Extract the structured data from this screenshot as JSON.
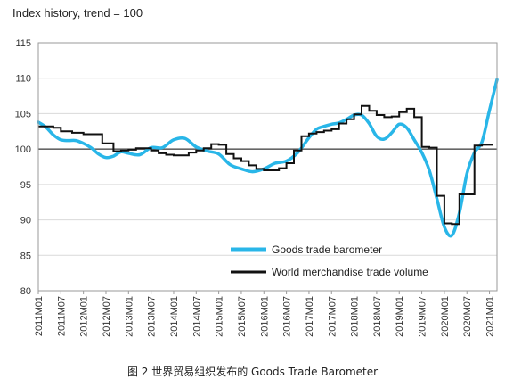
{
  "caption": "图 2 世界贸易组织发布的 Goods Trade Barometer",
  "colors": {
    "barometer": "#29b6e8",
    "volume": "#111111",
    "trend": "#666666",
    "grid": "#d9d9d9"
  },
  "chart_data": {
    "type": "line",
    "title": "Index history, trend = 100",
    "ylim": [
      80,
      115
    ],
    "yticks": [
      80,
      85,
      90,
      95,
      100,
      105,
      110,
      115
    ],
    "reference_line": 100,
    "grid": true,
    "legend_position": "bottom-right",
    "x_range": [
      "2011M01",
      "2021M03"
    ],
    "xticks": [
      "2011M01",
      "2011M07",
      "2012M01",
      "2012M07",
      "2013M01",
      "2013M07",
      "2014M01",
      "2014M07",
      "2015M01",
      "2015M07",
      "2016M01",
      "2016M07",
      "2017M01",
      "2017M07",
      "2018M01",
      "2018M07",
      "2019M01",
      "2019M07",
      "2020M01",
      "2020M07",
      "2021M01"
    ],
    "series": [
      {
        "name": "Goods trade barometer",
        "x": [
          "2011M01",
          "2011M03",
          "2011M05",
          "2011M07",
          "2011M09",
          "2011M11",
          "2012M01",
          "2012M03",
          "2012M05",
          "2012M07",
          "2012M09",
          "2012M11",
          "2013M01",
          "2013M04",
          "2013M07",
          "2013M10",
          "2014M01",
          "2014M04",
          "2014M07",
          "2014M10",
          "2015M01",
          "2015M04",
          "2015M07",
          "2015M10",
          "2016M01",
          "2016M04",
          "2016M07",
          "2016M10",
          "2017M01",
          "2017M03",
          "2017M05",
          "2017M07",
          "2017M09",
          "2017M11",
          "2018M01",
          "2018M03",
          "2018M05",
          "2018M07",
          "2018M09",
          "2018M11",
          "2019M01",
          "2019M03",
          "2019M05",
          "2019M07",
          "2019M09",
          "2019M11",
          "2020M01",
          "2020M03",
          "2020M05",
          "2020M07",
          "2020M09",
          "2020M11",
          "2021M01",
          "2021M03"
        ],
        "y": [
          103.8,
          103.1,
          102,
          101.3,
          101.2,
          101.2,
          100.8,
          100.2,
          99.3,
          98.8,
          99,
          99.6,
          99.4,
          99.2,
          100.2,
          100.2,
          101.3,
          101.5,
          100.3,
          99.7,
          99.3,
          97.8,
          97.2,
          96.8,
          97.2,
          98,
          98.3,
          99.5,
          101.6,
          102.8,
          103.2,
          103.5,
          103.7,
          104.2,
          104.8,
          104.8,
          103.6,
          101.8,
          101.4,
          102.3,
          103.5,
          103,
          101.3,
          99.5,
          97,
          93,
          89,
          87.8,
          91,
          96.5,
          99.5,
          101,
          105.5,
          109.8
        ]
      },
      {
        "name": "World merchandise trade volume",
        "x": [
          "2011M01",
          "2011M05",
          "2011M07",
          "2011M10",
          "2012M01",
          "2012M06",
          "2012M09",
          "2012M11",
          "2013M01",
          "2013M03",
          "2013M05",
          "2013M07",
          "2013M09",
          "2013M11",
          "2014M01",
          "2014M03",
          "2014M05",
          "2014M07",
          "2014M09",
          "2014M11",
          "2015M01",
          "2015M03",
          "2015M05",
          "2015M07",
          "2015M09",
          "2015M11",
          "2016M01",
          "2016M03",
          "2016M05",
          "2016M07",
          "2016M09",
          "2016M11",
          "2017M01",
          "2017M03",
          "2017M05",
          "2017M07",
          "2017M09",
          "2017M11",
          "2018M01",
          "2018M03",
          "2018M05",
          "2018M07",
          "2018M09",
          "2018M11",
          "2019M01",
          "2019M03",
          "2019M05",
          "2019M07",
          "2019M09",
          "2019M11",
          "2020M01",
          "2020M03",
          "2020M05",
          "2020M07",
          "2020M09",
          "2020M11",
          "2021M01",
          "2021M02"
        ],
        "y": [
          103.2,
          103,
          102.5,
          102.3,
          102.1,
          100.8,
          99.7,
          99.8,
          99.9,
          100.1,
          100.1,
          99.8,
          99.4,
          99.2,
          99.1,
          99.1,
          99.5,
          99.8,
          100.1,
          100.7,
          100.6,
          99.3,
          98.7,
          98.3,
          97.7,
          97.2,
          97,
          97,
          97.3,
          98,
          99.8,
          101.8,
          102.2,
          102.4,
          102.6,
          102.8,
          103.6,
          104.2,
          104.9,
          106.1,
          105.4,
          104.8,
          104.5,
          104.6,
          105.2,
          105.7,
          104.5,
          100.3,
          100.2,
          93.4,
          89.5,
          89.4,
          93.6,
          93.6,
          100.5,
          100.6,
          100.6,
          100.6
        ]
      }
    ]
  }
}
